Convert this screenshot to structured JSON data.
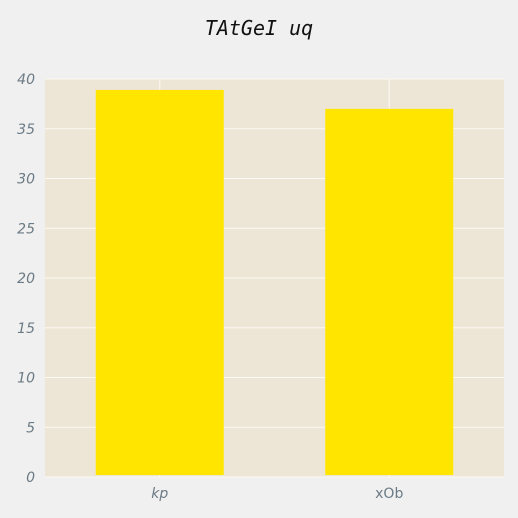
{
  "chart_data": {
    "type": "bar",
    "title": "TAtGeI uq",
    "xlabel": "",
    "ylabel": "",
    "categories": [
      "kp",
      "xOb"
    ],
    "values": [
      38.9,
      37.0
    ],
    "ylim": [
      0,
      40
    ],
    "yticks": [
      0,
      5,
      10,
      15,
      20,
      25,
      30,
      35,
      40
    ],
    "grid": true,
    "legend": "none",
    "colors": {
      "background": "#f0f0f0",
      "plot_background": "#ede6d6",
      "bar": "#ffe500",
      "grid": "#fbf9f3",
      "tick_text": "#6b7a84",
      "title_text": "#111111"
    }
  }
}
